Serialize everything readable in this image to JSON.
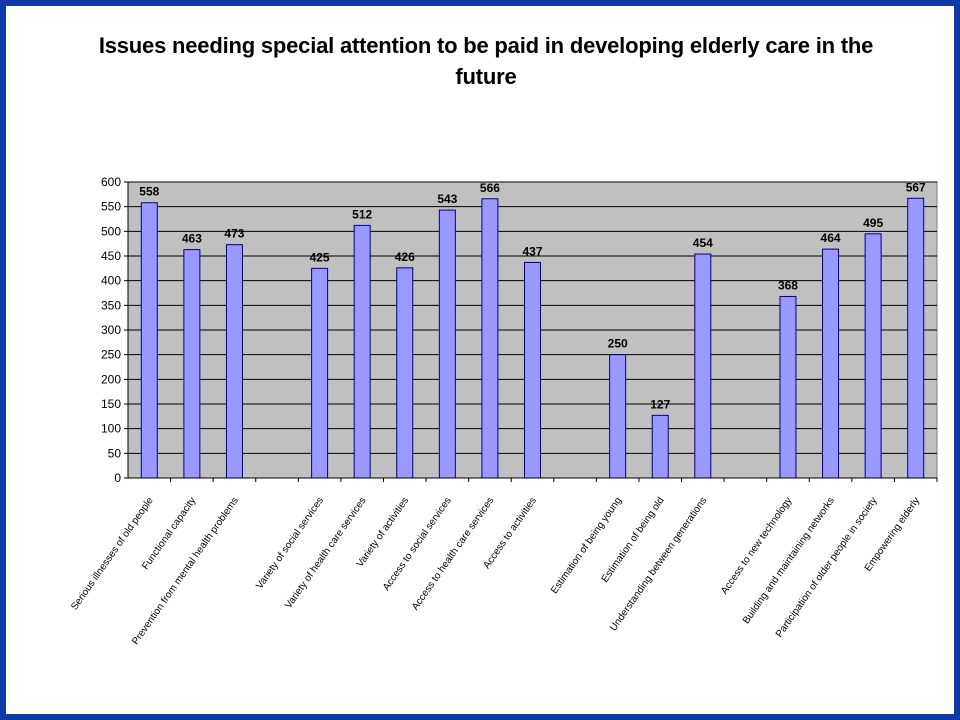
{
  "chart_data": {
    "type": "bar",
    "title": "Issues needing special attention to be paid in developing elderly care in the future",
    "xlabel": "",
    "ylabel": "",
    "ylim": [
      0,
      600
    ],
    "yticks": [
      0,
      50,
      100,
      150,
      200,
      250,
      300,
      350,
      400,
      450,
      500,
      550,
      600
    ],
    "grid": true,
    "legend": "none",
    "colors": {
      "bar": "#9999ff",
      "bar_stroke": "#000080",
      "plot_background": "#c0c0c0",
      "frame_border": "#0d3aa6"
    },
    "categories": [
      "Serious illnesses of old people",
      "Functional capacity",
      "Prevention from mental health problems",
      "",
      "Variety of social services",
      "Variety of health care services",
      "Variety of activities",
      "Access to social services",
      "Access to health care services",
      "Access to activities",
      "",
      "Estimation of being young",
      "Estimation of being old",
      "Understanding between generations",
      "",
      "Access to new technology",
      "Building and maintaining networks",
      "Participation of older people in society",
      "Empowering elderly"
    ],
    "values": [
      558,
      463,
      473,
      null,
      425,
      512,
      426,
      543,
      566,
      437,
      null,
      250,
      127,
      454,
      null,
      368,
      464,
      495,
      567
    ]
  }
}
